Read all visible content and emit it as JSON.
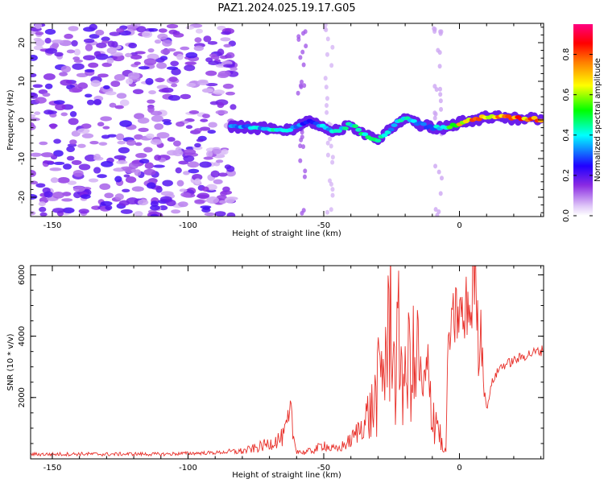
{
  "chart_data": [
    {
      "type": "heatmap",
      "title": "PAZ1.2024.025.19.17.G05",
      "xlabel": "Height of straight line (km)",
      "ylabel": "Frequency (Hz)",
      "xlim": [
        -158,
        31
      ],
      "ylim": [
        -25,
        25
      ],
      "xticks": [
        -150,
        -100,
        -50,
        0
      ],
      "xtick_labels": [
        "-150",
        "-100",
        "-50",
        "0"
      ],
      "yticks": [
        -20,
        -10,
        0,
        10,
        20
      ],
      "ytick_labels": [
        "-20",
        "-10",
        "0",
        "10",
        "20"
      ],
      "colorbar": {
        "label": "Normalized spectral amplitude",
        "range": [
          0,
          0.95
        ],
        "ticks": [
          0.0,
          0.2,
          0.4,
          0.6,
          0.8
        ],
        "tick_labels": [
          "0.0",
          "0.2",
          "0.4",
          "0.6",
          "0.8"
        ],
        "colormap": [
          "#ffffff",
          "#e0c8f8",
          "#8a2be2",
          "#2000ff",
          "#00ffff",
          "#00ff00",
          "#ffff00",
          "#ff8000",
          "#ff0000",
          "#ff0080"
        ]
      },
      "ridge": {
        "x": [
          -84,
          -75,
          -65,
          -60,
          -55,
          -50,
          -45,
          -40,
          -35,
          -30,
          -25,
          -20,
          -15,
          -10,
          -5,
          0,
          5,
          10,
          20,
          31
        ],
        "freq": [
          -1.5,
          -2,
          -3,
          -2,
          0,
          -2,
          -3,
          -1,
          -4,
          -5,
          -2,
          1,
          -1,
          -2,
          -2,
          -1,
          0,
          1,
          0.5,
          0
        ],
        "amplitude": [
          0.35,
          0.4,
          0.45,
          0.35,
          0.3,
          0.4,
          0.45,
          0.45,
          0.5,
          0.45,
          0.4,
          0.45,
          0.4,
          0.35,
          0.5,
          0.7,
          0.8,
          0.75,
          0.85,
          0.8
        ]
      },
      "legend": "colorbar-right"
    },
    {
      "type": "line",
      "xlabel": "Height of straight line (km)",
      "ylabel": "SNR (10 * v/v)",
      "xlim": [
        -158,
        31
      ],
      "ylim": [
        0,
        6300
      ],
      "xticks": [
        -150,
        -100,
        -50,
        0
      ],
      "xtick_labels": [
        "-150",
        "-100",
        "-50",
        "0"
      ],
      "yticks": [
        2000,
        4000,
        6000
      ],
      "ytick_labels": [
        "2000",
        "4000",
        "6000"
      ],
      "series": [
        {
          "color": "#e8302a",
          "x": [
            -158,
            -150,
            -140,
            -130,
            -120,
            -110,
            -100,
            -90,
            -80,
            -75,
            -70,
            -65,
            -62,
            -61,
            -60,
            -58,
            -55,
            -52,
            -50,
            -48,
            -45,
            -40,
            -35,
            -32,
            -30,
            -28,
            -26,
            -25,
            -24,
            -22,
            -20,
            -18,
            -16,
            -15,
            -14,
            -12,
            -10,
            -8,
            -6,
            -5,
            -4,
            -3,
            -2,
            0,
            2,
            3,
            4,
            5,
            6,
            7,
            8,
            9,
            10,
            12,
            15,
            20,
            25,
            31
          ],
          "y": [
            150,
            150,
            160,
            150,
            160,
            150,
            180,
            200,
            250,
            350,
            500,
            700,
            1400,
            600,
            300,
            200,
            250,
            350,
            500,
            350,
            300,
            600,
            1200,
            1600,
            2300,
            3100,
            3800,
            6200,
            2500,
            3900,
            2200,
            3600,
            2400,
            4000,
            1800,
            2600,
            1600,
            1200,
            200,
            300,
            4200,
            3900,
            4600,
            4800,
            4300,
            5400,
            4500,
            5800,
            6100,
            3500,
            4300,
            2700,
            1600,
            2500,
            3000,
            3200,
            3400,
            3550
          ]
        }
      ],
      "grid": false
    }
  ]
}
